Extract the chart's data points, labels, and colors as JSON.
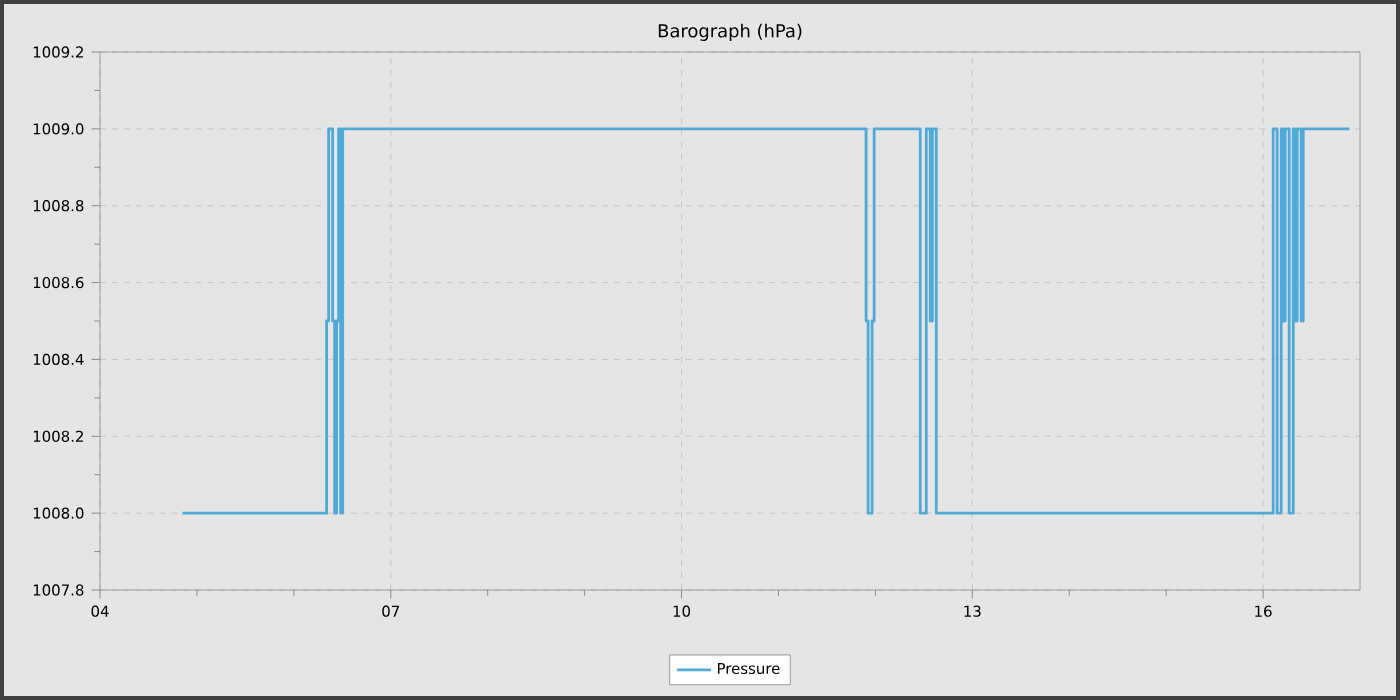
{
  "chart_data": {
    "type": "step",
    "title": "Barograph (hPa)",
    "series": [
      {
        "name": "Pressure",
        "color": "#4fa9d9",
        "x": [
          4.85,
          6.338,
          6.359,
          6.4,
          6.421,
          6.441,
          6.462,
          6.483,
          6.504,
          11.904,
          11.925,
          11.966,
          11.987,
          12.463,
          12.525,
          12.566,
          12.587,
          12.628,
          16.104,
          16.145,
          16.187,
          16.207,
          16.228,
          16.269,
          16.311,
          16.331,
          16.352,
          16.393,
          16.414,
          16.891
        ],
        "values": [
          1008.0,
          1008.5,
          1009.0,
          1008.5,
          1008.0,
          1008.5,
          1009.0,
          1008.0,
          1009.0,
          1008.5,
          1008.0,
          1008.5,
          1009.0,
          1008.0,
          1009.0,
          1008.5,
          1009.0,
          1008.0,
          1009.0,
          1008.0,
          1009.0,
          1008.5,
          1009.0,
          1008.0,
          1009.0,
          1008.5,
          1009.0,
          1008.5,
          1009.0,
          1009.0
        ]
      }
    ],
    "xlim": [
      4,
      17
    ],
    "xticks": [
      {
        "value": 4,
        "label": "04"
      },
      {
        "value": 7,
        "label": "07"
      },
      {
        "value": 10,
        "label": "10"
      },
      {
        "value": 13,
        "label": "13"
      },
      {
        "value": 16,
        "label": "16"
      }
    ],
    "ylim": [
      1007.8,
      1009.2
    ],
    "yticks": [
      {
        "value": 1007.8,
        "label": "1007.8"
      },
      {
        "value": 1008.0,
        "label": "1008.0"
      },
      {
        "value": 1008.2,
        "label": "1008.2"
      },
      {
        "value": 1008.4,
        "label": "1008.4"
      },
      {
        "value": 1008.6,
        "label": "1008.6"
      },
      {
        "value": 1008.8,
        "label": "1008.8"
      },
      {
        "value": 1009.0,
        "label": "1009.0"
      },
      {
        "value": 1009.2,
        "label": "1009.2"
      }
    ],
    "grid": true,
    "legend": "bottom"
  }
}
